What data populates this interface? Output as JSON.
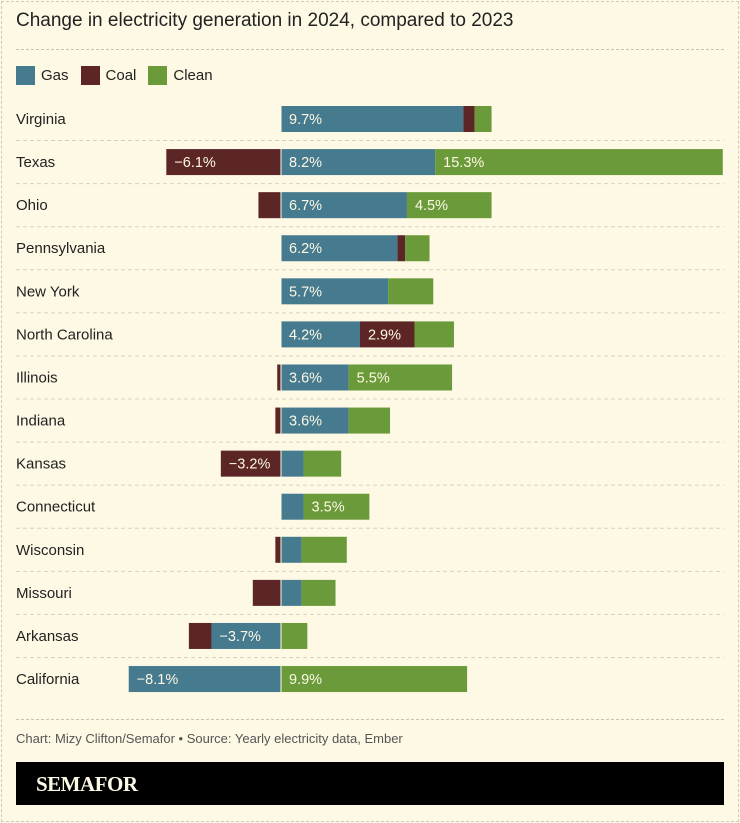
{
  "chart_data": {
    "type": "bar",
    "orientation": "horizontal",
    "stacked": "diverging",
    "title": "Change in electricity generation in 2024, compared to 2023",
    "categories": [
      "Virginia",
      "Texas",
      "Ohio",
      "Pennsylvania",
      "New York",
      "North Carolina",
      "Illinois",
      "Indiana",
      "Kansas",
      "Connecticut",
      "Wisconsin",
      "Missouri",
      "Arkansas",
      "California"
    ],
    "series": [
      {
        "name": "Gas",
        "color": "#457a8f",
        "values": [
          9.7,
          8.2,
          6.7,
          6.2,
          5.7,
          4.2,
          3.6,
          3.6,
          1.2,
          1.2,
          1.1,
          1.1,
          -3.7,
          -8.1
        ],
        "labels": [
          "9.7%",
          "8.2%",
          "6.7%",
          "6.2%",
          "5.7%",
          "4.2%",
          "3.6%",
          "3.6%",
          null,
          null,
          null,
          null,
          "−3.7%",
          "−8.1%"
        ]
      },
      {
        "name": "Coal",
        "color": "#5c2526",
        "values": [
          0.6,
          -6.1,
          -1.2,
          0.4,
          0,
          2.9,
          -0.2,
          -0.3,
          -3.2,
          0,
          -0.3,
          -1.5,
          -1.2,
          0
        ],
        "labels": [
          null,
          "−6.1%",
          null,
          null,
          null,
          "2.9%",
          null,
          null,
          "−3.2%",
          null,
          null,
          null,
          null,
          null
        ]
      },
      {
        "name": "Clean",
        "color": "#6b9a3a",
        "values": [
          0.9,
          15.3,
          4.5,
          1.3,
          2.4,
          2.1,
          5.5,
          2.2,
          2.0,
          3.5,
          2.4,
          1.8,
          1.4,
          9.9
        ],
        "labels": [
          null,
          "15.3%",
          "4.5%",
          null,
          null,
          null,
          "5.5%",
          null,
          null,
          "3.5%",
          null,
          null,
          null,
          "9.9%"
        ]
      }
    ],
    "legend_position": "top-left",
    "grid": false,
    "xlabel": "",
    "ylabel": ""
  },
  "credit": "Chart: Mizy Clifton/Semafor • Source: Yearly electricity data, Ember",
  "brand": "SEMAFOR",
  "background": "#fdf9e4"
}
